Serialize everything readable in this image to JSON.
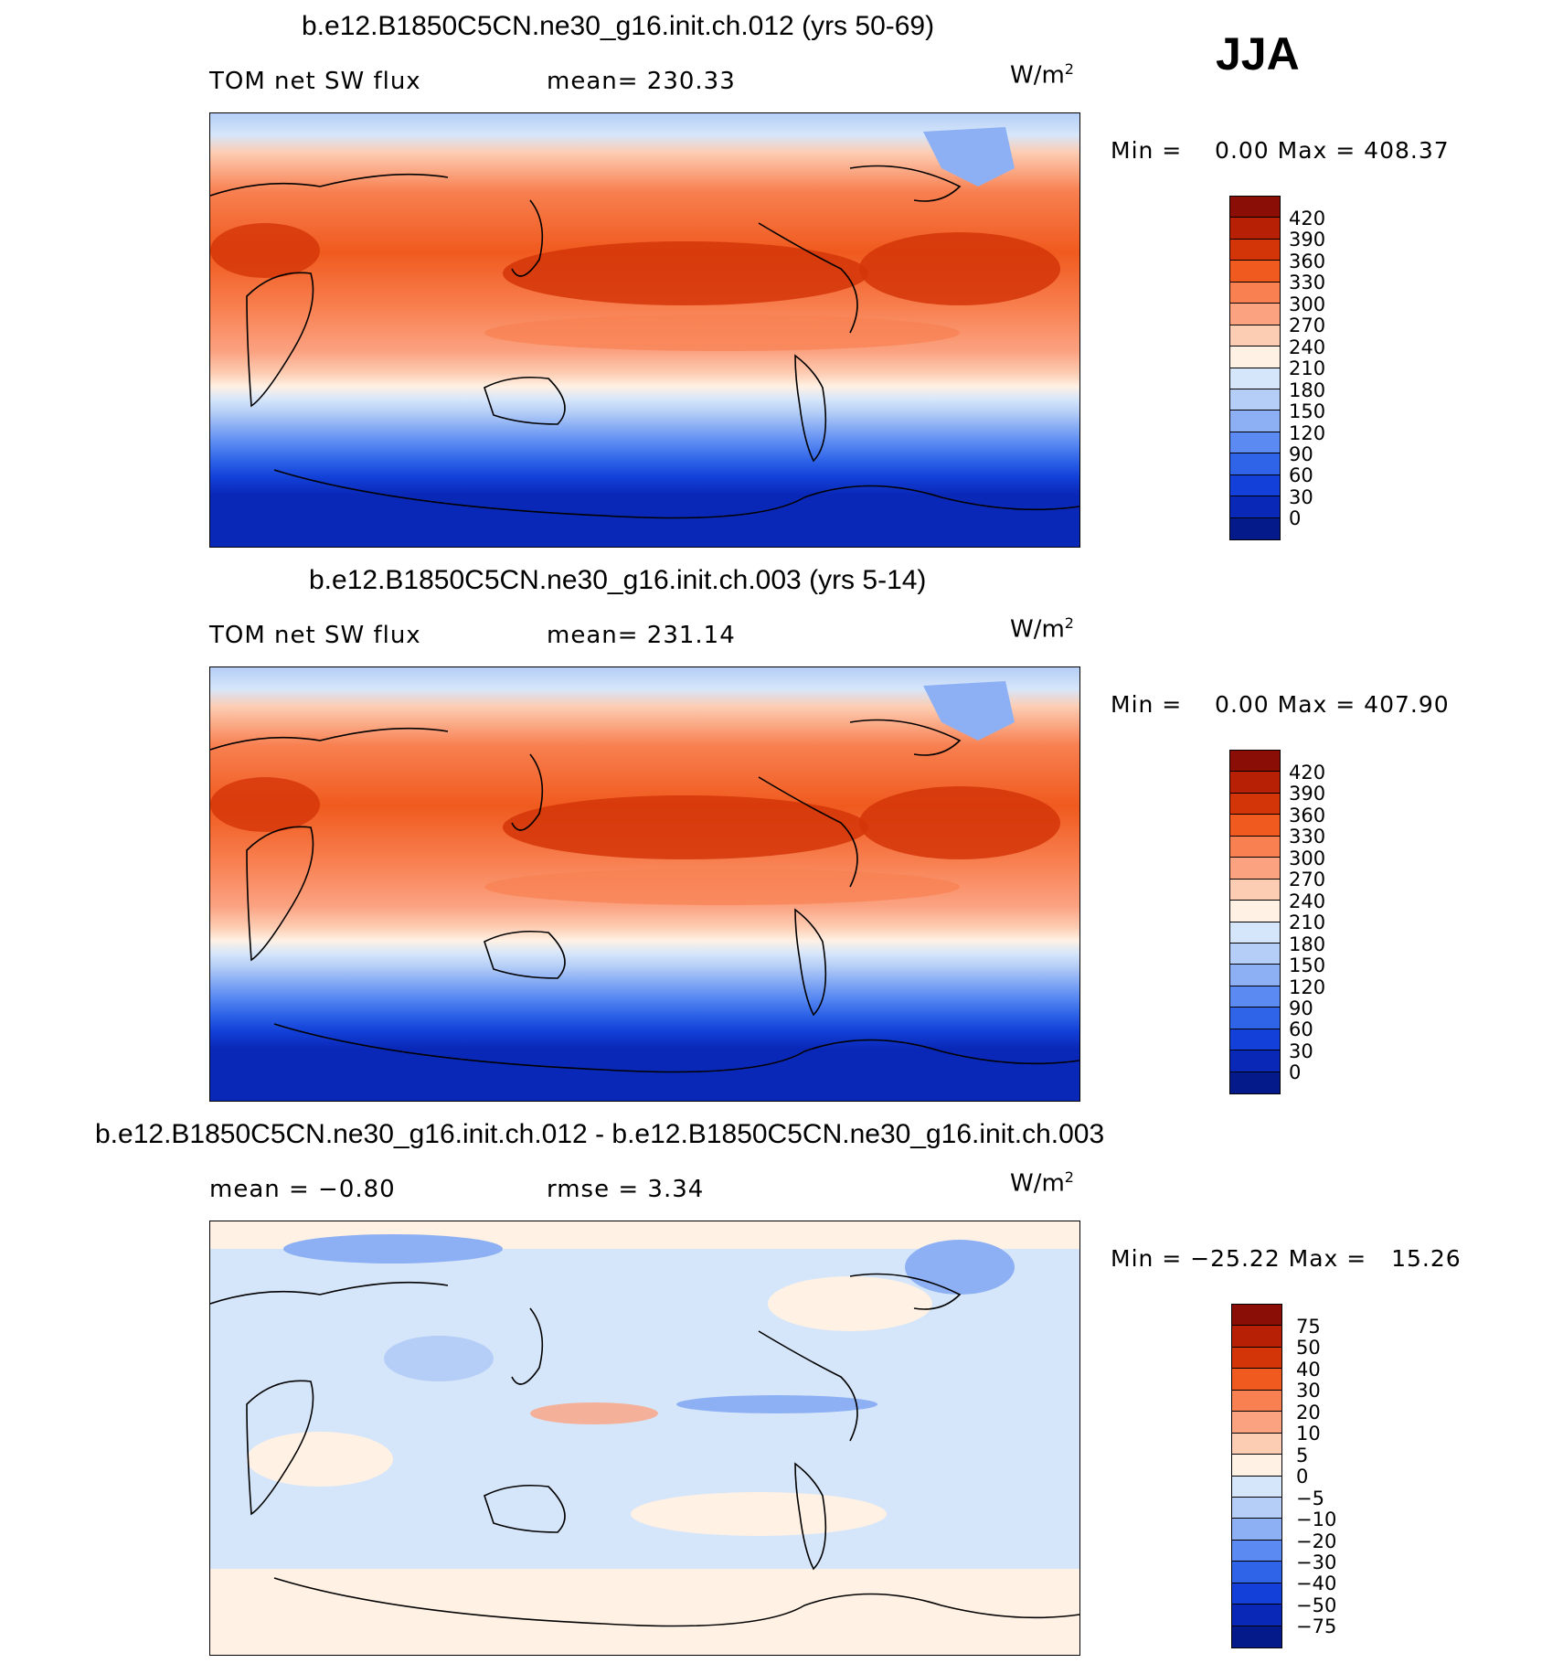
{
  "season": "JJA",
  "panels": [
    {
      "title": "b.e12.B1850C5CN.ne30_g16.init.ch.012 (yrs 50-69)",
      "left_label": "TOM net SW flux",
      "center_label": "mean= 230.33",
      "units": "W/m",
      "units_sup": "2",
      "minmax": "Min =    0.00 Max = 408.37",
      "cbar_labels": [
        "420",
        "390",
        "360",
        "330",
        "300",
        "270",
        "240",
        "210",
        "180",
        "150",
        "120",
        "90",
        "60",
        "30",
        "0"
      ]
    },
    {
      "title": "b.e12.B1850C5CN.ne30_g16.init.ch.003 (yrs 5-14)",
      "left_label": "TOM net SW flux",
      "center_label": "mean= 231.14",
      "units": "W/m",
      "units_sup": "2",
      "minmax": "Min =    0.00 Max = 407.90",
      "cbar_labels": [
        "420",
        "390",
        "360",
        "330",
        "300",
        "270",
        "240",
        "210",
        "180",
        "150",
        "120",
        "90",
        "60",
        "30",
        "0"
      ]
    },
    {
      "title": "b.e12.B1850C5CN.ne30_g16.init.ch.012 - b.e12.B1850C5CN.ne30_g16.init.ch.003",
      "left_label": "mean =   −0.80",
      "center_label": "rmse =    3.34",
      "units": "W/m",
      "units_sup": "2",
      "minmax": "Min = −25.22 Max =   15.26",
      "cbar_labels": [
        "75",
        "50",
        "40",
        "30",
        "20",
        "10",
        "5",
        "0",
        "−5",
        "−10",
        "−20",
        "−30",
        "−40",
        "−50",
        "−75"
      ]
    }
  ],
  "colors": {
    "scale": [
      "#8a0e05",
      "#b82005",
      "#d43508",
      "#f05a1e",
      "#f88051",
      "#fba281",
      "#fdcdb3",
      "#fff1e4",
      "#d6e6fa",
      "#b5cef7",
      "#8db0f5",
      "#5a8af2",
      "#2f64e8",
      "#1240d8",
      "#0a28b8",
      "#051a8a"
    ]
  }
}
